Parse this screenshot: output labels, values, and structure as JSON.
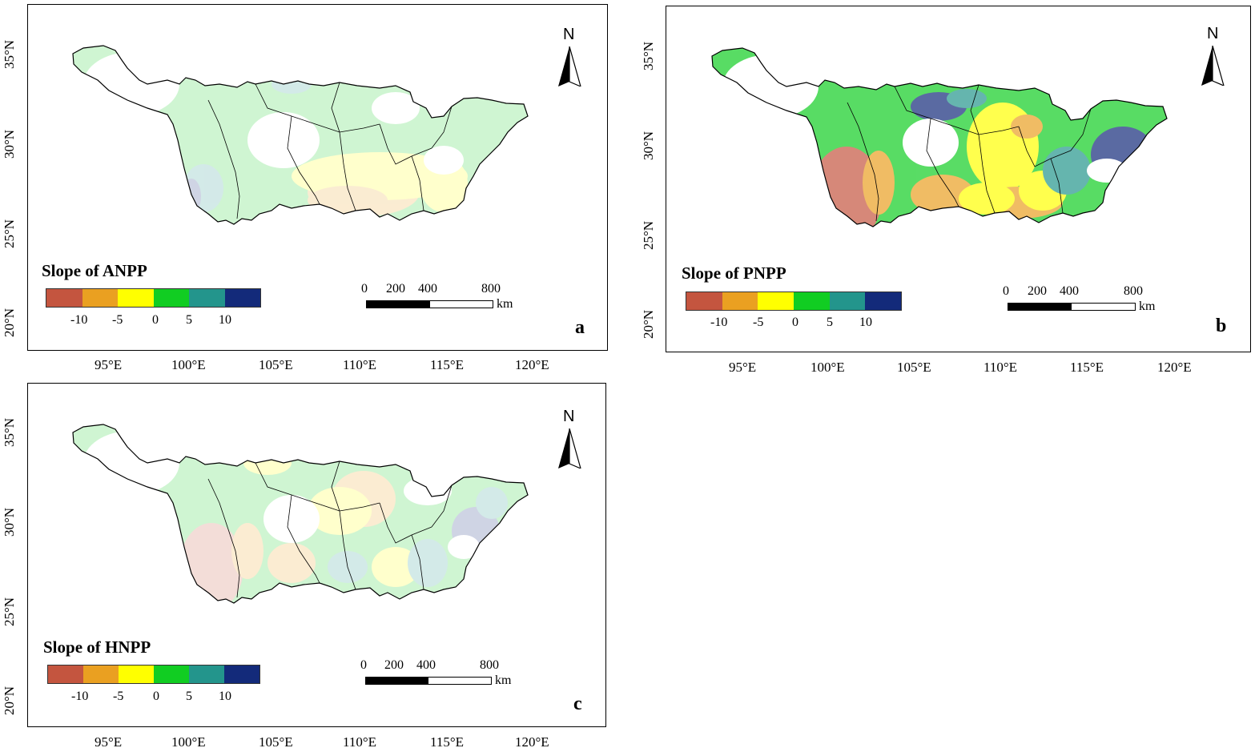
{
  "colors": {
    "class1": "#c4553f",
    "class2": "#eaa021",
    "class3": "#ffff00",
    "class4": "#11cd22",
    "class5": "#23958c",
    "class6": "#132a7a",
    "outline": "#000000"
  },
  "axes": {
    "x_ticks": [
      "95°E",
      "100°E",
      "105°E",
      "110°E",
      "115°E",
      "120°E"
    ],
    "y_ticks": [
      "20°N",
      "25°N",
      "30°N",
      "35°N"
    ]
  },
  "legend": {
    "values": [
      "-10",
      "-5",
      "0",
      "5",
      "10"
    ]
  },
  "scalebar": {
    "labels": [
      "0",
      "200",
      "400",
      "800"
    ],
    "unit": "km"
  },
  "north_arrow": {
    "label": "N",
    "icon": "north-arrow-icon"
  },
  "panels": [
    {
      "id": "a",
      "letter": "a",
      "legend_title": "Slope of ANPP"
    },
    {
      "id": "b",
      "letter": "b",
      "legend_title": "Slope of PNPP"
    },
    {
      "id": "c",
      "letter": "c",
      "legend_title": "Slope of HNPP"
    }
  ]
}
